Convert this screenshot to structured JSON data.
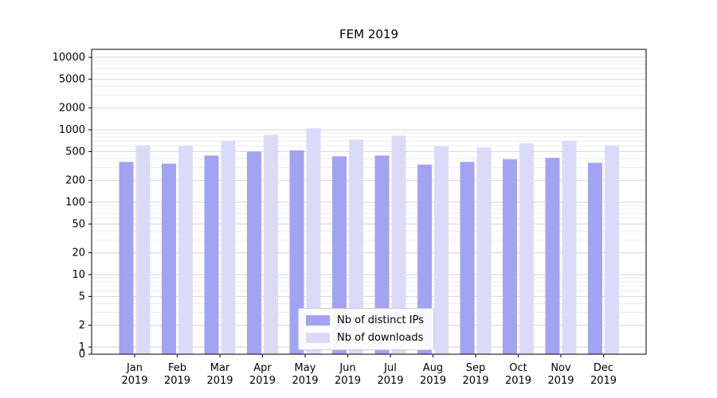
{
  "chart_data": {
    "type": "bar",
    "title": "FEM 2019",
    "categories": [
      "Jan",
      "Feb",
      "Mar",
      "Apr",
      "May",
      "Jun",
      "Jul",
      "Aug",
      "Sep",
      "Oct",
      "Nov",
      "Dec"
    ],
    "year_label": "2019",
    "series": [
      {
        "name": "Nb of distinct IPs",
        "color": "#a3a3f3",
        "values": [
          360,
          340,
          440,
          500,
          520,
          430,
          440,
          330,
          360,
          390,
          410,
          350
        ]
      },
      {
        "name": "Nb of downloads",
        "color": "#dbdbf9",
        "values": [
          610,
          600,
          700,
          850,
          1050,
          730,
          830,
          590,
          570,
          650,
          710,
          600
        ]
      }
    ],
    "yscale": "symlog",
    "y_ticks": [
      0,
      1,
      2,
      5,
      10,
      20,
      50,
      100,
      200,
      500,
      1000,
      2000,
      5000,
      10000
    ],
    "ylim": [
      0,
      10000
    ],
    "grid": true,
    "legend_position": "lower center"
  }
}
